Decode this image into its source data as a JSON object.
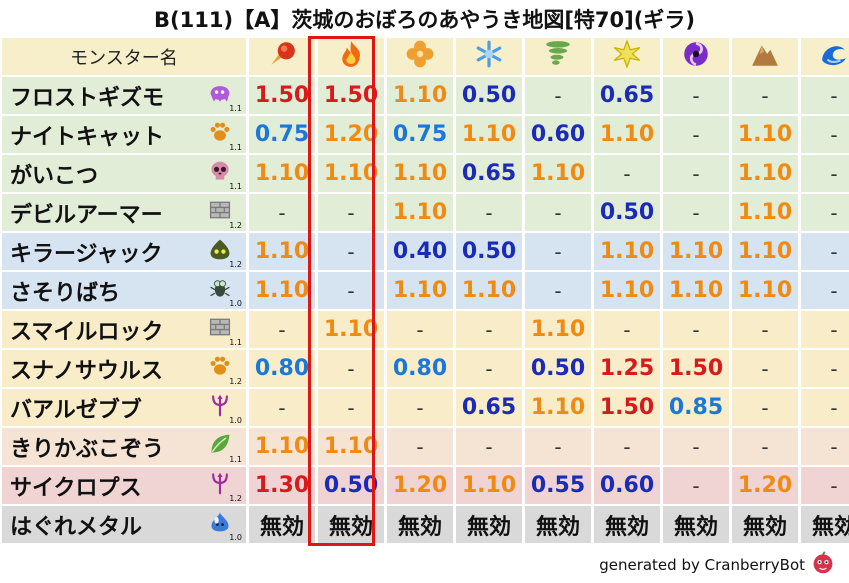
{
  "title": "B(111)【A】茨城のおぼろのあやうき地図[特70](ギラ)",
  "header_label": "モンスター名",
  "columns": [
    {
      "icon": "meteor-fire-icon",
      "color": "#d9331a"
    },
    {
      "icon": "flame-icon",
      "color": "#f06a12"
    },
    {
      "icon": "clover-icon",
      "color": "#f0a030"
    },
    {
      "icon": "snowflake-icon",
      "color": "#4a9ee8"
    },
    {
      "icon": "tornado-icon",
      "color": "#6aa84f"
    },
    {
      "icon": "lightning-burst-icon",
      "color": "#c8b400"
    },
    {
      "icon": "dark-swirl-icon",
      "color": "#7a2cc8"
    },
    {
      "icon": "rock-mountain-icon",
      "color": "#b07a40"
    },
    {
      "icon": "wave-icon",
      "color": "#1a6ad8"
    }
  ],
  "rows": [
    {
      "name": "フロストギズモ",
      "level": "1.1",
      "icon": "ghost-cloud-icon",
      "icon_color": "#b05ad8",
      "bg": "green",
      "values": [
        "1.50",
        "1.50",
        "1.10",
        "0.50",
        "-",
        "0.65",
        "-",
        "-",
        "-"
      ],
      "colors": [
        "red",
        "red",
        "orange",
        "navy",
        "dash",
        "navy",
        "dash",
        "dash",
        "dash"
      ]
    },
    {
      "name": "ナイトキャット",
      "level": "1.1",
      "icon": "paw-icon",
      "icon_color": "#e0901a",
      "bg": "green",
      "values": [
        "0.75",
        "1.20",
        "0.75",
        "1.10",
        "0.60",
        "1.10",
        "-",
        "1.10",
        "-"
      ],
      "colors": [
        "blue",
        "orange",
        "blue",
        "orange",
        "navy",
        "orange",
        "dash",
        "orange",
        "dash"
      ]
    },
    {
      "name": "がいこつ",
      "level": "1.1",
      "icon": "skull-icon",
      "icon_color": "#d88aa8",
      "bg": "green",
      "values": [
        "1.10",
        "1.10",
        "1.10",
        "0.65",
        "1.10",
        "-",
        "-",
        "1.10",
        "-"
      ],
      "colors": [
        "orange",
        "orange",
        "orange",
        "navy",
        "orange",
        "dash",
        "dash",
        "orange",
        "dash"
      ]
    },
    {
      "name": "デビルアーマー",
      "level": "1.2",
      "icon": "brick-wall-icon",
      "icon_color": "#7a7a7a",
      "bg": "green",
      "values": [
        "-",
        "-",
        "1.10",
        "-",
        "-",
        "0.50",
        "-",
        "1.10",
        "-"
      ],
      "colors": [
        "dash",
        "dash",
        "orange",
        "dash",
        "dash",
        "navy",
        "dash",
        "orange",
        "dash"
      ]
    },
    {
      "name": "キラージャック",
      "level": "1.2",
      "icon": "dark-slime-icon",
      "icon_color": "#4a5a20",
      "bg": "blue",
      "values": [
        "1.10",
        "-",
        "0.40",
        "0.50",
        "-",
        "1.10",
        "1.10",
        "1.10",
        "-"
      ],
      "colors": [
        "orange",
        "dash",
        "navy",
        "navy",
        "dash",
        "orange",
        "orange",
        "orange",
        "dash"
      ]
    },
    {
      "name": "さそりばち",
      "level": "1.0",
      "icon": "bug-icon",
      "icon_color": "#3a4a3a",
      "bg": "blue",
      "values": [
        "1.10",
        "-",
        "1.10",
        "1.10",
        "-",
        "1.10",
        "1.10",
        "1.10",
        "-"
      ],
      "colors": [
        "orange",
        "dash",
        "orange",
        "orange",
        "dash",
        "orange",
        "orange",
        "orange",
        "dash"
      ]
    },
    {
      "name": "スマイルロック",
      "level": "1.1",
      "icon": "brick-wall-icon",
      "icon_color": "#7a7a7a",
      "bg": "cream",
      "values": [
        "-",
        "1.10",
        "-",
        "-",
        "1.10",
        "-",
        "-",
        "-",
        "-"
      ],
      "colors": [
        "dash",
        "orange",
        "dash",
        "dash",
        "orange",
        "dash",
        "dash",
        "dash",
        "dash"
      ]
    },
    {
      "name": "スナノサウルス",
      "level": "1.2",
      "icon": "paw-icon",
      "icon_color": "#e0901a",
      "bg": "cream",
      "values": [
        "0.80",
        "-",
        "0.80",
        "-",
        "0.50",
        "1.25",
        "1.50",
        "-",
        "-"
      ],
      "colors": [
        "blue",
        "dash",
        "blue",
        "dash",
        "navy",
        "red",
        "red",
        "dash",
        "dash"
      ]
    },
    {
      "name": "バアルゼブブ",
      "level": "1.0",
      "icon": "trident-demon-icon",
      "icon_color": "#a02aa0",
      "bg": "cream",
      "values": [
        "-",
        "-",
        "-",
        "0.65",
        "1.10",
        "1.50",
        "0.85",
        "-",
        "-"
      ],
      "colors": [
        "dash",
        "dash",
        "dash",
        "navy",
        "orange",
        "red",
        "blue",
        "dash",
        "dash"
      ]
    },
    {
      "name": "きりかぶこぞう",
      "level": "1.1",
      "icon": "leaf-icon",
      "icon_color": "#5aa83a",
      "bg": "peach",
      "values": [
        "1.10",
        "1.10",
        "-",
        "-",
        "-",
        "-",
        "-",
        "-",
        "-"
      ],
      "colors": [
        "orange",
        "orange",
        "dash",
        "dash",
        "dash",
        "dash",
        "dash",
        "dash",
        "dash"
      ]
    },
    {
      "name": "サイクロプス",
      "level": "1.2",
      "icon": "trident-demon-icon",
      "icon_color": "#a02aa0",
      "bg": "pink",
      "values": [
        "1.30",
        "0.50",
        "1.20",
        "1.10",
        "0.55",
        "0.60",
        "-",
        "1.20",
        "-"
      ],
      "colors": [
        "red",
        "navy",
        "orange",
        "orange",
        "navy",
        "navy",
        "dash",
        "orange",
        "dash"
      ]
    },
    {
      "name": "はぐれメタル",
      "level": "1.0",
      "icon": "metal-slime-icon",
      "icon_color": "#3a7ad8",
      "bg": "grey",
      "values": [
        "無効",
        "無効",
        "無効",
        "無効",
        "無効",
        "無効",
        "無効",
        "無効",
        "無効"
      ],
      "colors": [
        "black",
        "black",
        "black",
        "black",
        "black",
        "black",
        "black",
        "black",
        "black"
      ]
    }
  ],
  "highlight_column": 1,
  "footer": {
    "text": "generated by CranberryBot",
    "icon": "cranberry-bot-icon",
    "icon_color": "#d8324a"
  }
}
